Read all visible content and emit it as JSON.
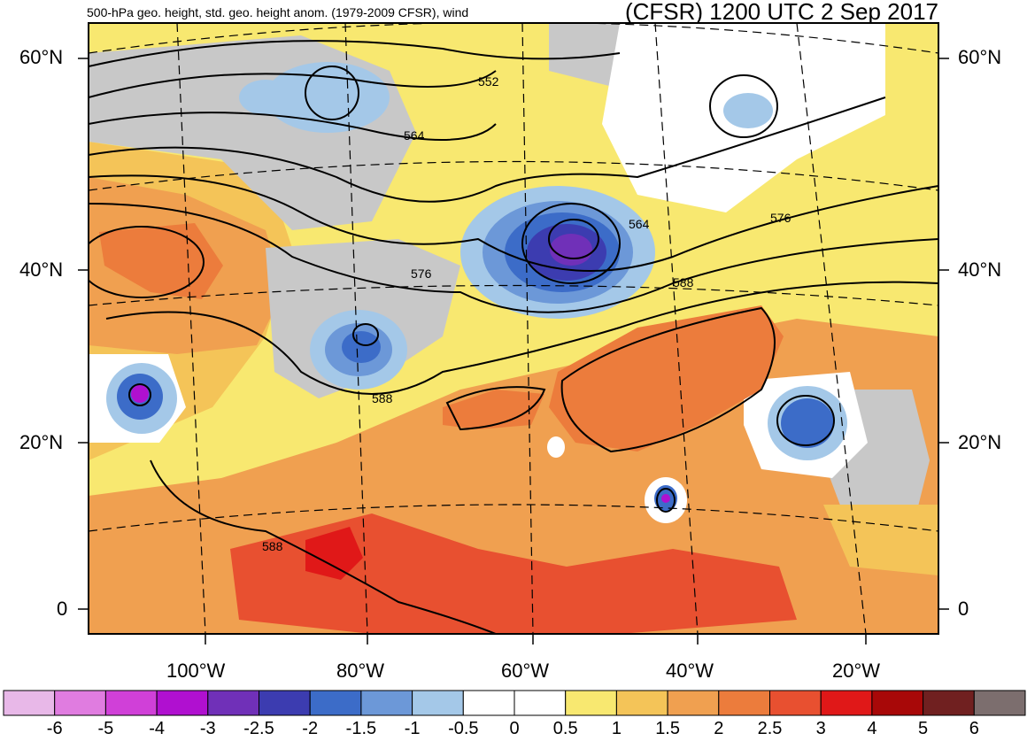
{
  "header": {
    "title_left": "500-hPa geo. height, std. geo. height anom. (1979-2009 CFSR), wind",
    "title_right": "(CFSR) 1200 UTC 2 Sep 2017"
  },
  "lat_labels": [
    "60°N",
    "40°N",
    "20°N",
    "0"
  ],
  "lon_labels": [
    "100°W",
    "80°W",
    "60°W",
    "40°W",
    "20°W"
  ],
  "contour_labels": [
    "552",
    "564",
    "564",
    "576",
    "576",
    "588",
    "588",
    "588"
  ],
  "colorbar": {
    "labels": [
      "-6",
      "-5",
      "-4",
      "-3",
      "-2.5",
      "-2",
      "-1.5",
      "-1",
      "-0.5",
      "0",
      "0.5",
      "1",
      "1.5",
      "2",
      "2.5",
      "3",
      "4",
      "5",
      "6"
    ],
    "colors": [
      "#e8b8e8",
      "#e07ce0",
      "#d040d8",
      "#b010d0",
      "#7030b8",
      "#3c3cb0",
      "#3c6cc8",
      "#6c98d8",
      "#a4c8e8",
      "#ffffff",
      "#ffffff",
      "#f8e870",
      "#f4c458",
      "#f0a050",
      "#ec7c3c",
      "#e85030",
      "#e01818",
      "#a80808",
      "#702020",
      "#7c6e6e"
    ]
  },
  "map_colors": {
    "land_gray": "#c8c8c8",
    "ocean_warm": "#f0a050",
    "strong_warm": "#ec7c3c",
    "hot": "#e85030",
    "very_hot": "#e01818",
    "yellow": "#f8e870",
    "pale_orange": "#f4c458",
    "light_blue": "#a4c8e8",
    "mid_blue": "#6c98d8",
    "blue": "#3c6cc8",
    "deep_blue": "#3c3cb0",
    "purple": "#7030b8",
    "magenta": "#b010d0"
  }
}
